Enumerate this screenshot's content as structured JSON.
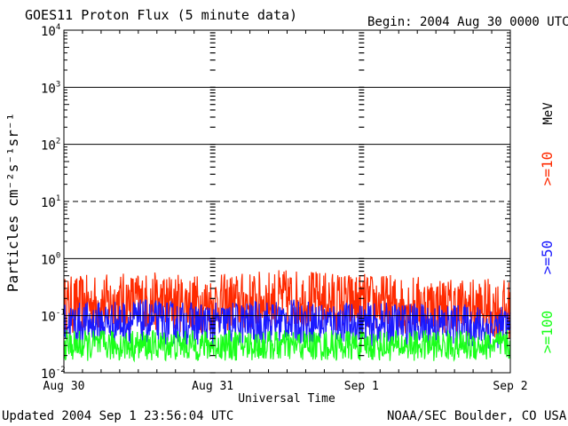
{
  "header": {
    "title": "GOES11 Proton Flux (5 minute data)",
    "begin": "Begin: 2004 Aug 30 0000 UTC"
  },
  "footer": {
    "updated": "Updated 2004 Sep  1 23:56:04 UTC",
    "credit": "NOAA/SEC Boulder, CO USA"
  },
  "chart_data": {
    "type": "line",
    "title": "GOES11 Proton Flux (5 minute data)",
    "xlabel": "Universal Time",
    "ylabel": "Particles cm⁻²s⁻¹sr⁻¹",
    "y_scale": "log",
    "ylim": [
      0.01,
      10000
    ],
    "y_ticks": [
      {
        "base": "10",
        "exp": "4"
      },
      {
        "base": "10",
        "exp": "3"
      },
      {
        "base": "10",
        "exp": "2"
      },
      {
        "base": "10",
        "exp": "1"
      },
      {
        "base": "10",
        "exp": "0"
      },
      {
        "base": "10",
        "exp": "-1"
      },
      {
        "base": "10",
        "exp": "-2"
      }
    ],
    "x_ticks": [
      "Aug 30",
      "Aug 31",
      "Sep 1",
      "Sep 2"
    ],
    "xlim": [
      "2004-08-30 00:00",
      "2004-09-02 00:00"
    ],
    "unit_label": "MeV",
    "grid": true,
    "legend_placement": "right",
    "series": [
      {
        "name": ">=10",
        "color": "#ff2a00",
        "mean": 0.15,
        "x": [
          "2004-08-30 00:00",
          "2004-08-30 12:00",
          "2004-08-31 00:00",
          "2004-08-31 12:00",
          "2004-09-01 00:00",
          "2004-09-01 12:00",
          "2004-09-02 00:00"
        ],
        "y": [
          0.15,
          0.18,
          0.16,
          0.2,
          0.17,
          0.15,
          0.13
        ]
      },
      {
        "name": ">=50",
        "color": "#1a1aff",
        "mean": 0.07,
        "x": [
          "2004-08-30 00:00",
          "2004-08-30 12:00",
          "2004-08-31 00:00",
          "2004-08-31 12:00",
          "2004-09-01 00:00",
          "2004-09-01 12:00",
          "2004-09-02 00:00"
        ],
        "y": [
          0.07,
          0.08,
          0.07,
          0.08,
          0.07,
          0.07,
          0.06
        ]
      },
      {
        "name": ">=100",
        "color": "#1aff1a",
        "mean": 0.03,
        "x": [
          "2004-08-30 00:00",
          "2004-08-30 12:00",
          "2004-08-31 00:00",
          "2004-08-31 12:00",
          "2004-09-01 00:00",
          "2004-09-01 12:00",
          "2004-09-02 00:00"
        ],
        "y": [
          0.03,
          0.03,
          0.03,
          0.03,
          0.03,
          0.03,
          0.03
        ]
      }
    ]
  }
}
